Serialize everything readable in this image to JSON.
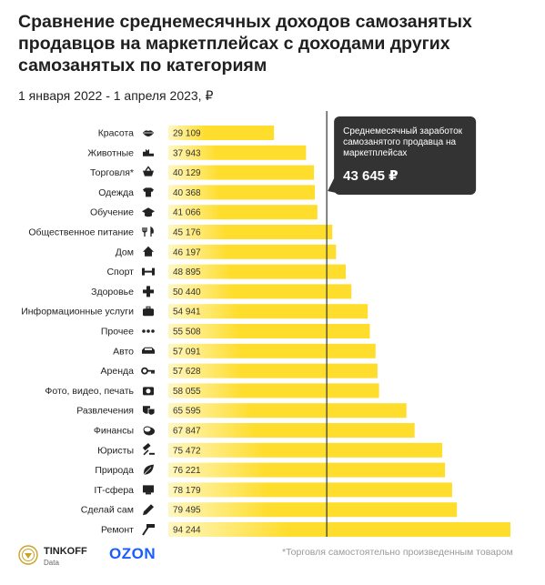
{
  "title": "Сравнение среднемесячных доходов самозанятых продавцов на маркетплейсах с доходами других самозанятых по категориям",
  "subtitle": "1 января 2022 - 1 апреля 2023, ₽",
  "colors": {
    "bar": "#ffdd2d",
    "bar_fade": "#fff7c2",
    "line": "#333333",
    "callout_bg": "#333333",
    "callout_text": "#ffffff"
  },
  "chart_data": {
    "type": "bar",
    "orientation": "horizontal",
    "categories": [
      "Красота",
      "Животные",
      "Торговля*",
      "Одежда",
      "Обучение",
      "Общественное питание",
      "Дом",
      "Спорт",
      "Здоровье",
      "Информационные услуги",
      "Прочее",
      "Авто",
      "Аренда",
      "Фото, видео, печать",
      "Развлечения",
      "Финансы",
      "Юристы",
      "Природа",
      "IT-сфера",
      "Сделай сам",
      "Ремонт"
    ],
    "value_labels": [
      "29 109",
      "37 943",
      "40 129",
      "40 368",
      "41 066",
      "45 176",
      "46 197",
      "48 895",
      "50 440",
      "54 941",
      "55 508",
      "57 091",
      "57 628",
      "58 055",
      "65 595",
      "67 847",
      "75 472",
      "76 221",
      "78 179",
      "79 495",
      "94 244"
    ],
    "values": [
      29109,
      37943,
      40129,
      40368,
      41066,
      45176,
      46197,
      48895,
      50440,
      54941,
      55508,
      57091,
      57628,
      58055,
      65595,
      67847,
      75472,
      76221,
      78179,
      79495,
      94244
    ],
    "icons": [
      "lips-icon",
      "cat-icon",
      "basket-icon",
      "tshirt-icon",
      "graduation-cap-icon",
      "fork-knife-icon",
      "house-icon",
      "dumbbell-icon",
      "medical-cross-icon",
      "laptop-bag-icon",
      "dots-icon",
      "car-icon",
      "key-icon",
      "camera-icon",
      "theater-masks-icon",
      "coins-icon",
      "gavel-icon",
      "leaf-icon",
      "computer-icon",
      "pencil-icon",
      "hammer-icon"
    ],
    "reference_line": {
      "value": 43645,
      "label": "Среднемесячный заработок самозанятого продавца на маркетплейсах",
      "value_label": "43 645 ₽"
    },
    "xlim": [
      0,
      94244
    ]
  },
  "footer": {
    "tinkoff_name": "TINKOFF",
    "tinkoff_sub": "Data",
    "ozon": "OZON",
    "footnote": "*Торговля самостоятельно произведенным товаром"
  }
}
